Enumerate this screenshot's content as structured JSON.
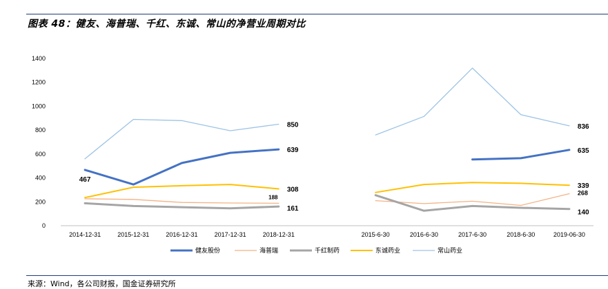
{
  "header": {
    "title": "图表 48：健友、海普瑞、千红、东诚、常山的净营业周期对比"
  },
  "footer": {
    "source": "来源：Wind，各公司财报，国金证券研究所"
  },
  "colors": {
    "健友股份": "#4472c4",
    "海普瑞": "#f4b183",
    "千红制药": "#a5a5a5",
    "东诚药业": "#ffc000",
    "常山药业": "#9dc3e6",
    "axis": "#bfbfbf",
    "rule": "#1f3c7a"
  },
  "chart_data": {
    "type": "line",
    "title": "",
    "xlabel": "",
    "ylabel": "",
    "ylim": [
      0,
      1400
    ],
    "yticks": [
      0,
      200,
      400,
      600,
      800,
      1000,
      1200,
      1400
    ],
    "grid": false,
    "legend": "bottom",
    "groups": [
      {
        "categories": [
          "2014-12-31",
          "2015-12-31",
          "2016-12-31",
          "2017-12-31",
          "2018-12-31"
        ],
        "series": [
          {
            "name": "健友股份",
            "values": [
              467,
              345,
              525,
              610,
              639
            ]
          },
          {
            "name": "海普瑞",
            "values": [
              225,
              220,
              195,
              190,
              188
            ]
          },
          {
            "name": "千红制药",
            "values": [
              188,
              165,
              155,
              145,
              161
            ]
          },
          {
            "name": "东诚药业",
            "values": [
              235,
              322,
              335,
              345,
              308
            ]
          },
          {
            "name": "常山药业",
            "values": [
              560,
              890,
              880,
              795,
              850
            ]
          }
        ],
        "data_labels": [
          {
            "series": "健友股份",
            "index": 0,
            "text": "467"
          },
          {
            "series": "健友股份",
            "index": 4,
            "text": "639"
          },
          {
            "series": "海普瑞",
            "index": 4,
            "text": "188"
          },
          {
            "series": "千红制药",
            "index": 4,
            "text": "161"
          },
          {
            "series": "东诚药业",
            "index": 4,
            "text": "308"
          },
          {
            "series": "常山药业",
            "index": 4,
            "text": "850"
          }
        ]
      },
      {
        "categories": [
          "2015-6-30",
          "2016-6-30",
          "2017-6-30",
          "2018-6-30",
          "2019-06-30"
        ],
        "series": [
          {
            "name": "健友股份",
            "values": [
              null,
              null,
              555,
              565,
              635
            ]
          },
          {
            "name": "海普瑞",
            "values": [
              210,
              185,
              205,
              170,
              268
            ]
          },
          {
            "name": "千红制药",
            "values": [
              255,
              125,
              165,
              150,
              140
            ]
          },
          {
            "name": "东诚药业",
            "values": [
              278,
              345,
              362,
              355,
              339
            ]
          },
          {
            "name": "常山药业",
            "values": [
              760,
              915,
              1320,
              930,
              836
            ]
          }
        ],
        "data_labels": [
          {
            "series": "健友股份",
            "index": 4,
            "text": "635"
          },
          {
            "series": "海普瑞",
            "index": 4,
            "text": "268"
          },
          {
            "series": "千红制药",
            "index": 4,
            "text": "140"
          },
          {
            "series": "东诚药业",
            "index": 4,
            "text": "339"
          },
          {
            "series": "常山药业",
            "index": 4,
            "text": "836"
          }
        ]
      }
    ]
  }
}
